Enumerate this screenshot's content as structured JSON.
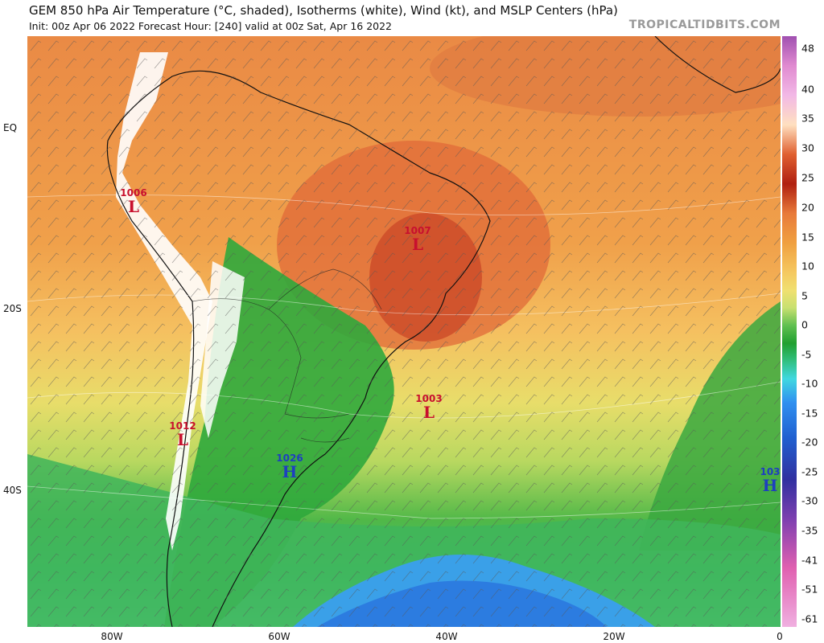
{
  "header": {
    "title": "GEM 850 hPa Air Temperature (°C, shaded), Isotherms (white), Wind (kt), and MSLP Centers (hPa)",
    "subtitle": "Init: 00z Apr 06 2022   Forecast Hour: [240]   valid at 00z Sat, Apr 16 2022",
    "brand": "TROPICALTIDBITS.COM"
  },
  "axes": {
    "lat_labels": [
      "EQ",
      "20S",
      "40S"
    ],
    "lon_labels": [
      "80W",
      "60W",
      "40W",
      "20W",
      "0"
    ]
  },
  "colorbar": {
    "labels": [
      "48",
      "40",
      "35",
      "30",
      "25",
      "20",
      "15",
      "10",
      "5",
      "0",
      "-5",
      "-10",
      "-15",
      "-20",
      "-25",
      "-30",
      "-35",
      "-41",
      "-51",
      "-61"
    ],
    "colors": [
      "#a050b0",
      "#e08ad0",
      "#f2b8e6",
      "#ffe0c0",
      "#e06030",
      "#b02010",
      "#e87a3a",
      "#f0a040",
      "#f5c860",
      "#f0e070",
      "#c8e070",
      "#60c050",
      "#20a030",
      "#30c080",
      "#40d8e0",
      "#3090f0",
      "#2060d0",
      "#3030a0",
      "#8040b0",
      "#e060b0",
      "#f0b0e0"
    ]
  },
  "pressure_centers": [
    {
      "type": "low",
      "value": "1006",
      "symbol": "L"
    },
    {
      "type": "low",
      "value": "1007",
      "symbol": "L"
    },
    {
      "type": "low",
      "value": "1012",
      "symbol": "L"
    },
    {
      "type": "low",
      "value": "1003",
      "symbol": "L"
    },
    {
      "type": "high",
      "value": "1026",
      "symbol": "H"
    },
    {
      "type": "high",
      "value": "103",
      "symbol": "H"
    }
  ]
}
